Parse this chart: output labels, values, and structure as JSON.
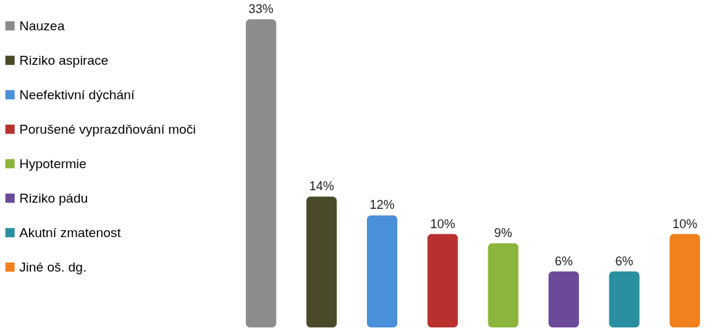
{
  "chart_data": {
    "type": "bar",
    "categories": [
      null,
      null,
      null,
      null,
      null,
      null,
      null,
      null
    ],
    "series": [
      {
        "name": "Nauzea",
        "color": "#8c8c8c",
        "values": [
          33,
          null,
          null,
          null,
          null,
          null,
          null,
          null
        ],
        "value_labels": [
          "33%",
          null,
          null,
          null,
          null,
          null,
          null,
          null
        ]
      },
      {
        "name": "Riziko aspirace",
        "color": "#4a4a2a",
        "values": [
          null,
          14,
          null,
          null,
          null,
          null,
          null,
          null
        ],
        "value_labels": [
          null,
          "14%",
          null,
          null,
          null,
          null,
          null,
          null
        ]
      },
      {
        "name": "Neefektivní dýchání",
        "color": "#4a8fd9",
        "values": [
          null,
          null,
          12,
          null,
          null,
          null,
          null,
          null
        ],
        "value_labels": [
          null,
          null,
          "12%",
          null,
          null,
          null,
          null,
          null
        ]
      },
      {
        "name": "Porušené vyprazdňování moči",
        "color": "#b8312f",
        "values": [
          null,
          null,
          null,
          10,
          null,
          null,
          null,
          null
        ],
        "value_labels": [
          null,
          null,
          null,
          "10%",
          null,
          null,
          null,
          null
        ]
      },
      {
        "name": "Hypotermie",
        "color": "#8db43c",
        "values": [
          null,
          null,
          null,
          null,
          9,
          null,
          null,
          null
        ],
        "value_labels": [
          null,
          null,
          null,
          null,
          "9%",
          null,
          null,
          null
        ]
      },
      {
        "name": "Riziko pádu",
        "color": "#6b4a9a",
        "values": [
          null,
          null,
          null,
          null,
          null,
          6,
          null,
          null
        ],
        "value_labels": [
          null,
          null,
          null,
          null,
          null,
          "6%",
          null,
          null
        ]
      },
      {
        "name": "Akutní zmatenost",
        "color": "#2a8fa0",
        "values": [
          null,
          null,
          null,
          null,
          null,
          null,
          6,
          null
        ],
        "value_labels": [
          null,
          null,
          null,
          null,
          null,
          null,
          "6%",
          null
        ]
      },
      {
        "name": "Jiné oš. dg.",
        "color": "#f0811c",
        "values": [
          null,
          null,
          null,
          null,
          null,
          null,
          null,
          10
        ],
        "value_labels": [
          null,
          null,
          null,
          null,
          null,
          null,
          null,
          "10%"
        ]
      }
    ],
    "legend": "left",
    "stacked": true
  }
}
